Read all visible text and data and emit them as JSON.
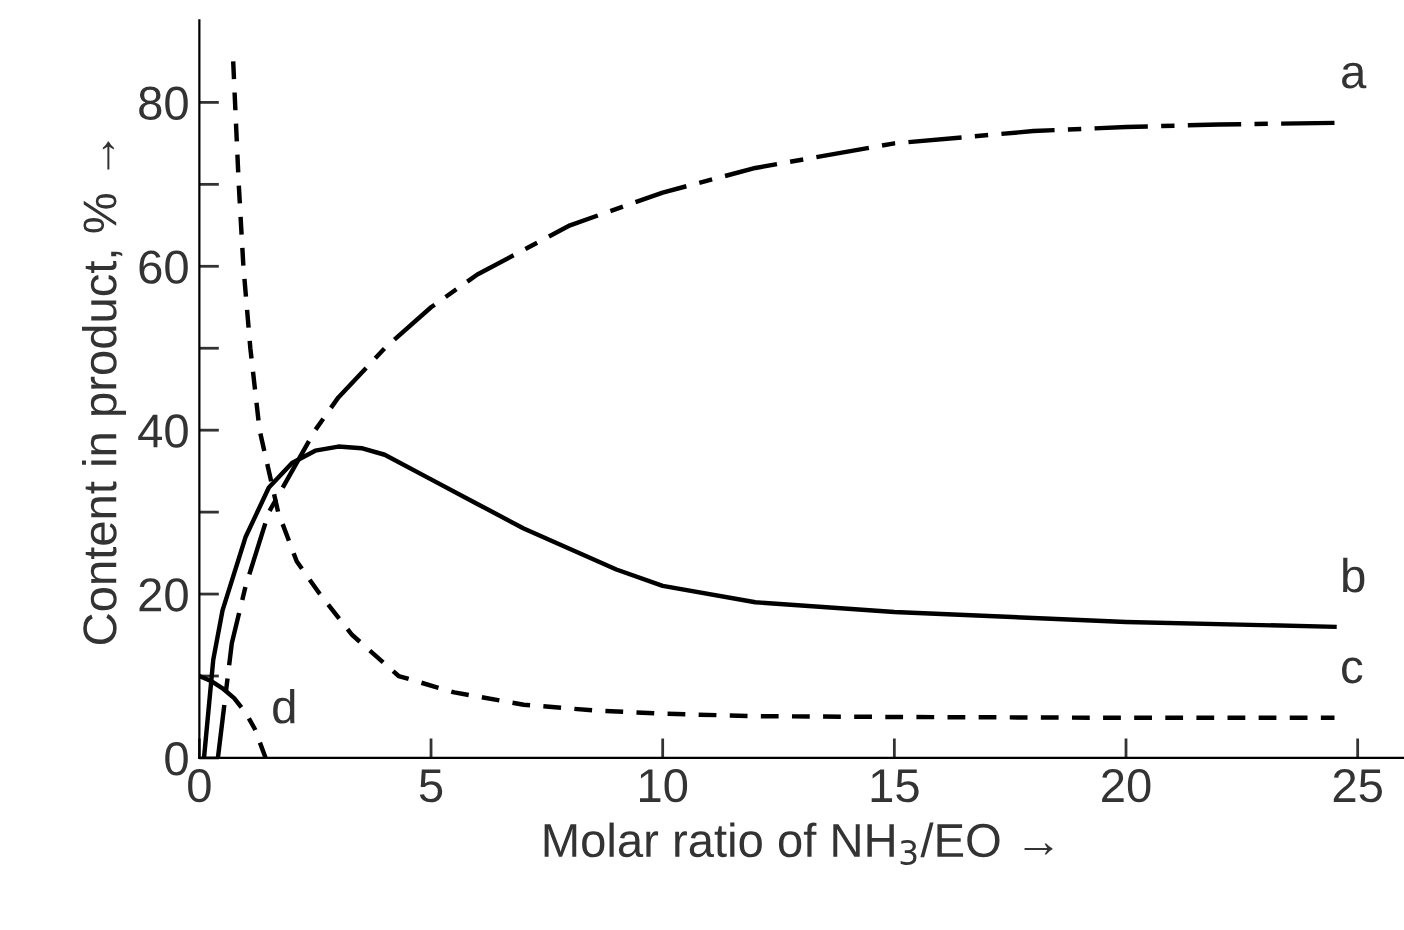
{
  "chart_data": {
    "type": "line",
    "xlabel": "Molar ratio of NH$_{3}$/EO →",
    "ylabel": "Content in product, % →",
    "xlim": [
      0,
      26
    ],
    "ylim": [
      0,
      90
    ],
    "xticks": [
      0,
      5,
      10,
      15,
      20,
      25
    ],
    "yticks": [
      0,
      {
        "value": 10,
        "label": null
      },
      20,
      {
        "value": 30,
        "label": null
      },
      40,
      {
        "value": 50,
        "label": null
      },
      60,
      {
        "value": 70,
        "label": null
      },
      80
    ],
    "grid": false,
    "legend": false,
    "marker": "none",
    "series": [
      {
        "name": "a",
        "color": "#000000",
        "line_style": "dashdot",
        "x": [
          0.4,
          0.7,
          1,
          1.5,
          2,
          2.5,
          3,
          4,
          5,
          6,
          7,
          8,
          10,
          12,
          15,
          18,
          20,
          22,
          24.5
        ],
        "values": [
          0,
          14,
          21,
          30,
          35,
          40,
          44,
          50,
          55,
          59,
          62,
          65,
          69,
          72,
          75,
          76.5,
          77,
          77.3,
          77.5
        ]
      },
      {
        "name": "b",
        "color": "#000000",
        "line_style": "solid",
        "x": [
          0.1,
          0.3,
          0.5,
          1,
          1.5,
          2,
          2.5,
          3,
          3.5,
          4,
          5,
          6,
          7,
          8,
          9,
          10,
          12,
          15,
          20,
          24.5
        ],
        "values": [
          0,
          12,
          18,
          27,
          33,
          36,
          37.5,
          38,
          37.8,
          37,
          34,
          31,
          28,
          25.5,
          23,
          21,
          19,
          17.8,
          16.6,
          16
        ]
      },
      {
        "name": "c",
        "color": "#000000",
        "line_style": "dashed",
        "x": [
          0.73,
          0.85,
          0.95,
          1.1,
          1.3,
          1.7,
          2.1,
          2.6,
          3.3,
          4.3,
          5.5,
          7,
          8.5,
          10,
          12,
          15,
          20,
          24.5
        ],
        "values": [
          85,
          70,
          60,
          50,
          40,
          30,
          24,
          20,
          15,
          10,
          8,
          6.5,
          5.8,
          5.4,
          5.1,
          5,
          4.9,
          4.9
        ]
      },
      {
        "name": "d",
        "color": "#000000",
        "line_style": "dashdot",
        "x": [
          0,
          0.25,
          0.5,
          0.75,
          1,
          1.2,
          1.43
        ],
        "values": [
          10,
          9.4,
          8.5,
          7.3,
          5.5,
          3.5,
          0
        ]
      }
    ]
  }
}
